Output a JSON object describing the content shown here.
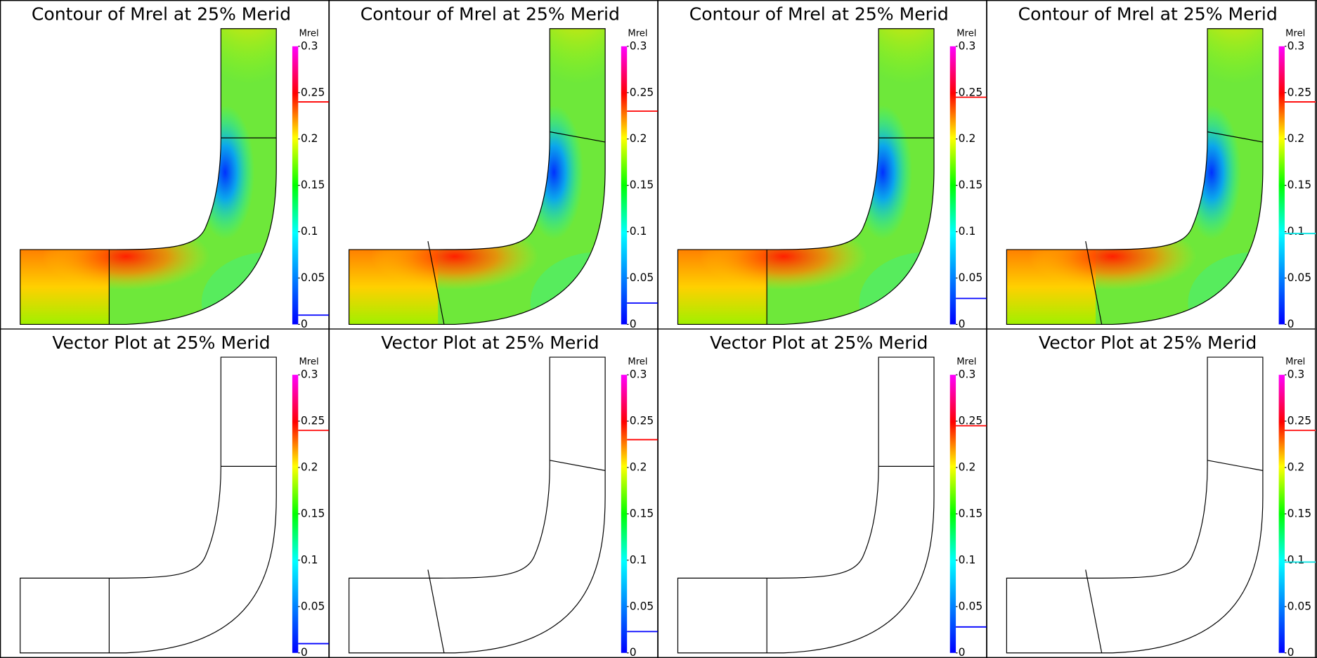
{
  "panels": [
    {
      "title": "Contour of Mrel at 25% Merid",
      "colorbar": {
        "label": "Mrel",
        "range": [
          0,
          0.3
        ],
        "ticks": [
          0,
          0.05,
          0.1,
          0.15,
          0.2,
          0.25,
          0.3
        ],
        "markers": [
          {
            "value": 0.24,
            "color": "#ff0000"
          },
          {
            "value": 0.01,
            "color": "#0000ff"
          }
        ]
      }
    },
    {
      "title": "Contour of Mrel at 25% Merid",
      "colorbar": {
        "label": "Mrel",
        "range": [
          0,
          0.3
        ],
        "ticks": [
          0,
          0.05,
          0.1,
          0.15,
          0.2,
          0.25,
          0.3
        ],
        "markers": [
          {
            "value": 0.23,
            "color": "#ff0000"
          },
          {
            "value": 0.023,
            "color": "#0000ff"
          }
        ]
      }
    },
    {
      "title": "Contour of Mrel at 25% Merid",
      "colorbar": {
        "label": "Mrel",
        "range": [
          0,
          0.3
        ],
        "ticks": [
          0,
          0.05,
          0.1,
          0.15,
          0.2,
          0.25,
          0.3
        ],
        "markers": [
          {
            "value": 0.245,
            "color": "#ff0000"
          },
          {
            "value": 0.028,
            "color": "#0000ff"
          }
        ]
      }
    },
    {
      "title": "Contour of Mrel at 25% Merid",
      "colorbar": {
        "label": "Mrel",
        "range": [
          0,
          0.3
        ],
        "ticks": [
          0,
          0.05,
          0.1,
          0.15,
          0.2,
          0.25,
          0.3
        ],
        "markers": [
          {
            "value": 0.24,
            "color": "#ff0000"
          },
          {
            "value": 0.098,
            "color": "#00e0e0"
          }
        ]
      }
    },
    {
      "title": "Vector Plot at 25% Merid",
      "colorbar": {
        "label": "Mrel",
        "range": [
          0,
          0.3
        ],
        "ticks": [
          0,
          0.05,
          0.1,
          0.15,
          0.2,
          0.25,
          0.3
        ],
        "markers": [
          {
            "value": 0.24,
            "color": "#ff0000"
          },
          {
            "value": 0.01,
            "color": "#0000ff"
          }
        ]
      }
    },
    {
      "title": "Vector Plot at 25% Merid",
      "colorbar": {
        "label": "Mrel",
        "range": [
          0,
          0.3
        ],
        "ticks": [
          0,
          0.05,
          0.1,
          0.15,
          0.2,
          0.25,
          0.3
        ],
        "markers": [
          {
            "value": 0.23,
            "color": "#ff0000"
          },
          {
            "value": 0.023,
            "color": "#0000ff"
          }
        ]
      }
    },
    {
      "title": "Vector Plot at 25% Merid",
      "colorbar": {
        "label": "Mrel",
        "range": [
          0,
          0.3
        ],
        "ticks": [
          0,
          0.05,
          0.1,
          0.15,
          0.2,
          0.25,
          0.3
        ],
        "markers": [
          {
            "value": 0.245,
            "color": "#ff0000"
          },
          {
            "value": 0.028,
            "color": "#0000ff"
          }
        ]
      }
    },
    {
      "title": "Vector Plot at 25% Merid",
      "colorbar": {
        "label": "Mrel",
        "range": [
          0,
          0.3
        ],
        "ticks": [
          0,
          0.05,
          0.1,
          0.15,
          0.2,
          0.25,
          0.3
        ],
        "markers": [
          {
            "value": 0.24,
            "color": "#ff0000"
          },
          {
            "value": 0.098,
            "color": "#00e0e0"
          }
        ]
      }
    }
  ]
}
